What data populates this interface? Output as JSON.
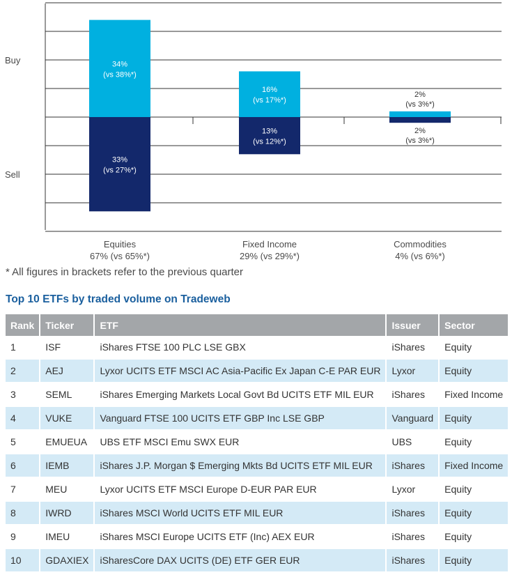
{
  "chart_data": {
    "type": "bar",
    "ylabels": [
      "Buy",
      "Sell"
    ],
    "categories": [
      {
        "name": "Equities",
        "share": "67% (vs 65%*)",
        "buy": 34,
        "buy_prev": "(vs 38%*)",
        "sell": 33,
        "sell_prev": "(vs 27%*)"
      },
      {
        "name": "Fixed Income",
        "share": "29% (vs 29%*)",
        "buy": 16,
        "buy_prev": "(vs 17%*)",
        "sell": 13,
        "sell_prev": "(vs 12%*)"
      },
      {
        "name": "Commodities",
        "share": "4% (vs 6%*)",
        "buy": 2,
        "buy_prev": "(vs 3%*)",
        "sell": 2,
        "sell_prev": "(vs 3%*)"
      }
    ],
    "ylim": [
      -40,
      40
    ],
    "grid": true,
    "colors": {
      "buy": "#00b0e0",
      "sell": "#13286b",
      "grid": "#333333"
    }
  },
  "note": "* All figures in brackets refer to the previous quarter",
  "table": {
    "title": "Top 10 ETFs by traded volume on Tradeweb",
    "headers": [
      "Rank",
      "Ticker",
      "ETF",
      "Issuer",
      "Sector"
    ],
    "rows": [
      [
        "1",
        "ISF",
        "iShares FTSE 100 PLC LSE GBX",
        "iShares",
        "Equity"
      ],
      [
        "2",
        "AEJ",
        "Lyxor UCITS ETF MSCI AC Asia-Pacific Ex Japan C-E PAR EUR",
        "Lyxor",
        "Equity"
      ],
      [
        "3",
        "SEML",
        "iShares Emerging Markets Local Govt Bd UCITS ETF MIL EUR",
        "iShares",
        "Fixed Income"
      ],
      [
        "4",
        "VUKE",
        "Vanguard FTSE 100 UCITS ETF GBP Inc LSE GBP",
        "Vanguard",
        "Equity"
      ],
      [
        "5",
        "EMUEUA",
        "UBS ETF MSCI Emu SWX EUR",
        "UBS",
        "Equity"
      ],
      [
        "6",
        "IEMB",
        "iShares J.P. Morgan $ Emerging Mkts Bd UCITS ETF MIL EUR",
        "iShares",
        "Fixed Income"
      ],
      [
        "7",
        "MEU",
        "Lyxor UCITS ETF MSCI Europe D-EUR PAR EUR",
        "Lyxor",
        "Equity"
      ],
      [
        "8",
        "IWRD",
        "iShares MSCI World UCITS ETF MIL EUR",
        "iShares",
        "Equity"
      ],
      [
        "9",
        "IMEU",
        "iShares MSCI Europe UCITS ETF (Inc) AEX EUR",
        "iShares",
        "Equity"
      ],
      [
        "10",
        "GDAXIEX",
        "iSharesCore DAX UCITS (DE) ETF GER EUR",
        "iShares",
        "Equity"
      ]
    ]
  }
}
